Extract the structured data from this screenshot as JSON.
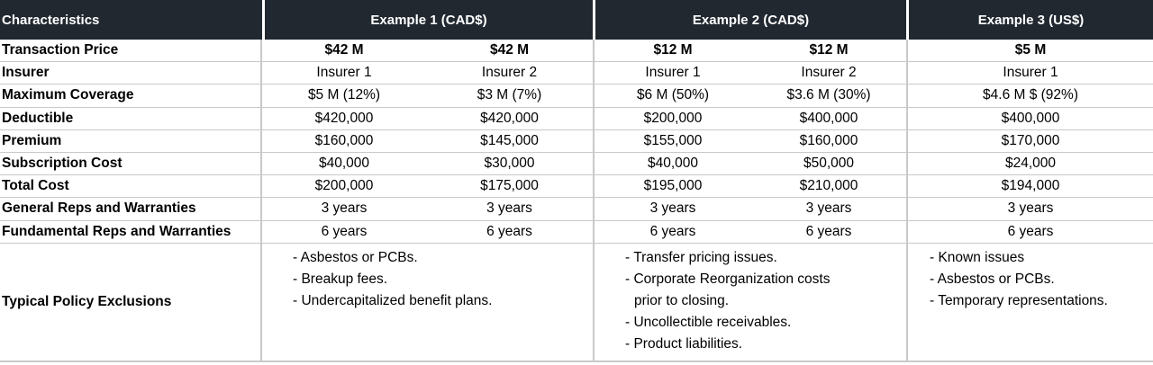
{
  "header": {
    "characteristics": "Characteristics",
    "example1": "Example 1 (CAD$)",
    "example2": "Example 2 (CAD$)",
    "example3": "Example 3 (US$)"
  },
  "rows": [
    {
      "label": "Transaction Price",
      "v": [
        "$42 M",
        "$42 M",
        "$12 M",
        "$12 M",
        "$5 M"
      ]
    },
    {
      "label": "Insurer",
      "v": [
        "Insurer 1",
        "Insurer 2",
        "Insurer 1",
        "Insurer 2",
        "Insurer 1"
      ]
    },
    {
      "label": "Maximum Coverage",
      "v": [
        "$5 M (12%)",
        "$3 M (7%)",
        "$6 M (50%)",
        "$3.6 M (30%)",
        "$4.6 M $ (92%)"
      ]
    },
    {
      "label": "Deductible",
      "v": [
        "$420,000",
        "$420,000",
        "$200,000",
        "$400,000",
        "$400,000"
      ]
    },
    {
      "label": "Premium",
      "v": [
        "$160,000",
        "$145,000",
        "$155,000",
        "$160,000",
        "$170,000"
      ]
    },
    {
      "label": "Subscription Cost",
      "v": [
        "$40,000",
        "$30,000",
        "$40,000",
        "$50,000",
        "$24,000"
      ]
    },
    {
      "label": "Total Cost",
      "v": [
        "$200,000",
        "$175,000",
        "$195,000",
        "$210,000",
        "$194,000"
      ]
    },
    {
      "label": "General Reps and Warranties",
      "v": [
        "3 years",
        "3 years",
        "3 years",
        "3 years",
        "3 years"
      ]
    },
    {
      "label": "Fundamental Reps and Warranties",
      "v": [
        "6 years",
        "6 years",
        "6 years",
        "6 years",
        "6 years"
      ]
    }
  ],
  "exclusions": {
    "label": "Typical Policy Exclusions",
    "example1": [
      "- Asbestos or PCBs.",
      "- Breakup fees.",
      "- Undercapitalized benefit plans."
    ],
    "example2": [
      "- Transfer pricing issues.",
      "- Corporate Reorganization costs prior to closing.",
      "- Uncollectible receivables.",
      "- Product liabilities."
    ],
    "example3": [
      "- Known issues",
      "- Asbestos or PCBs.",
      "- Temporary representations."
    ]
  }
}
